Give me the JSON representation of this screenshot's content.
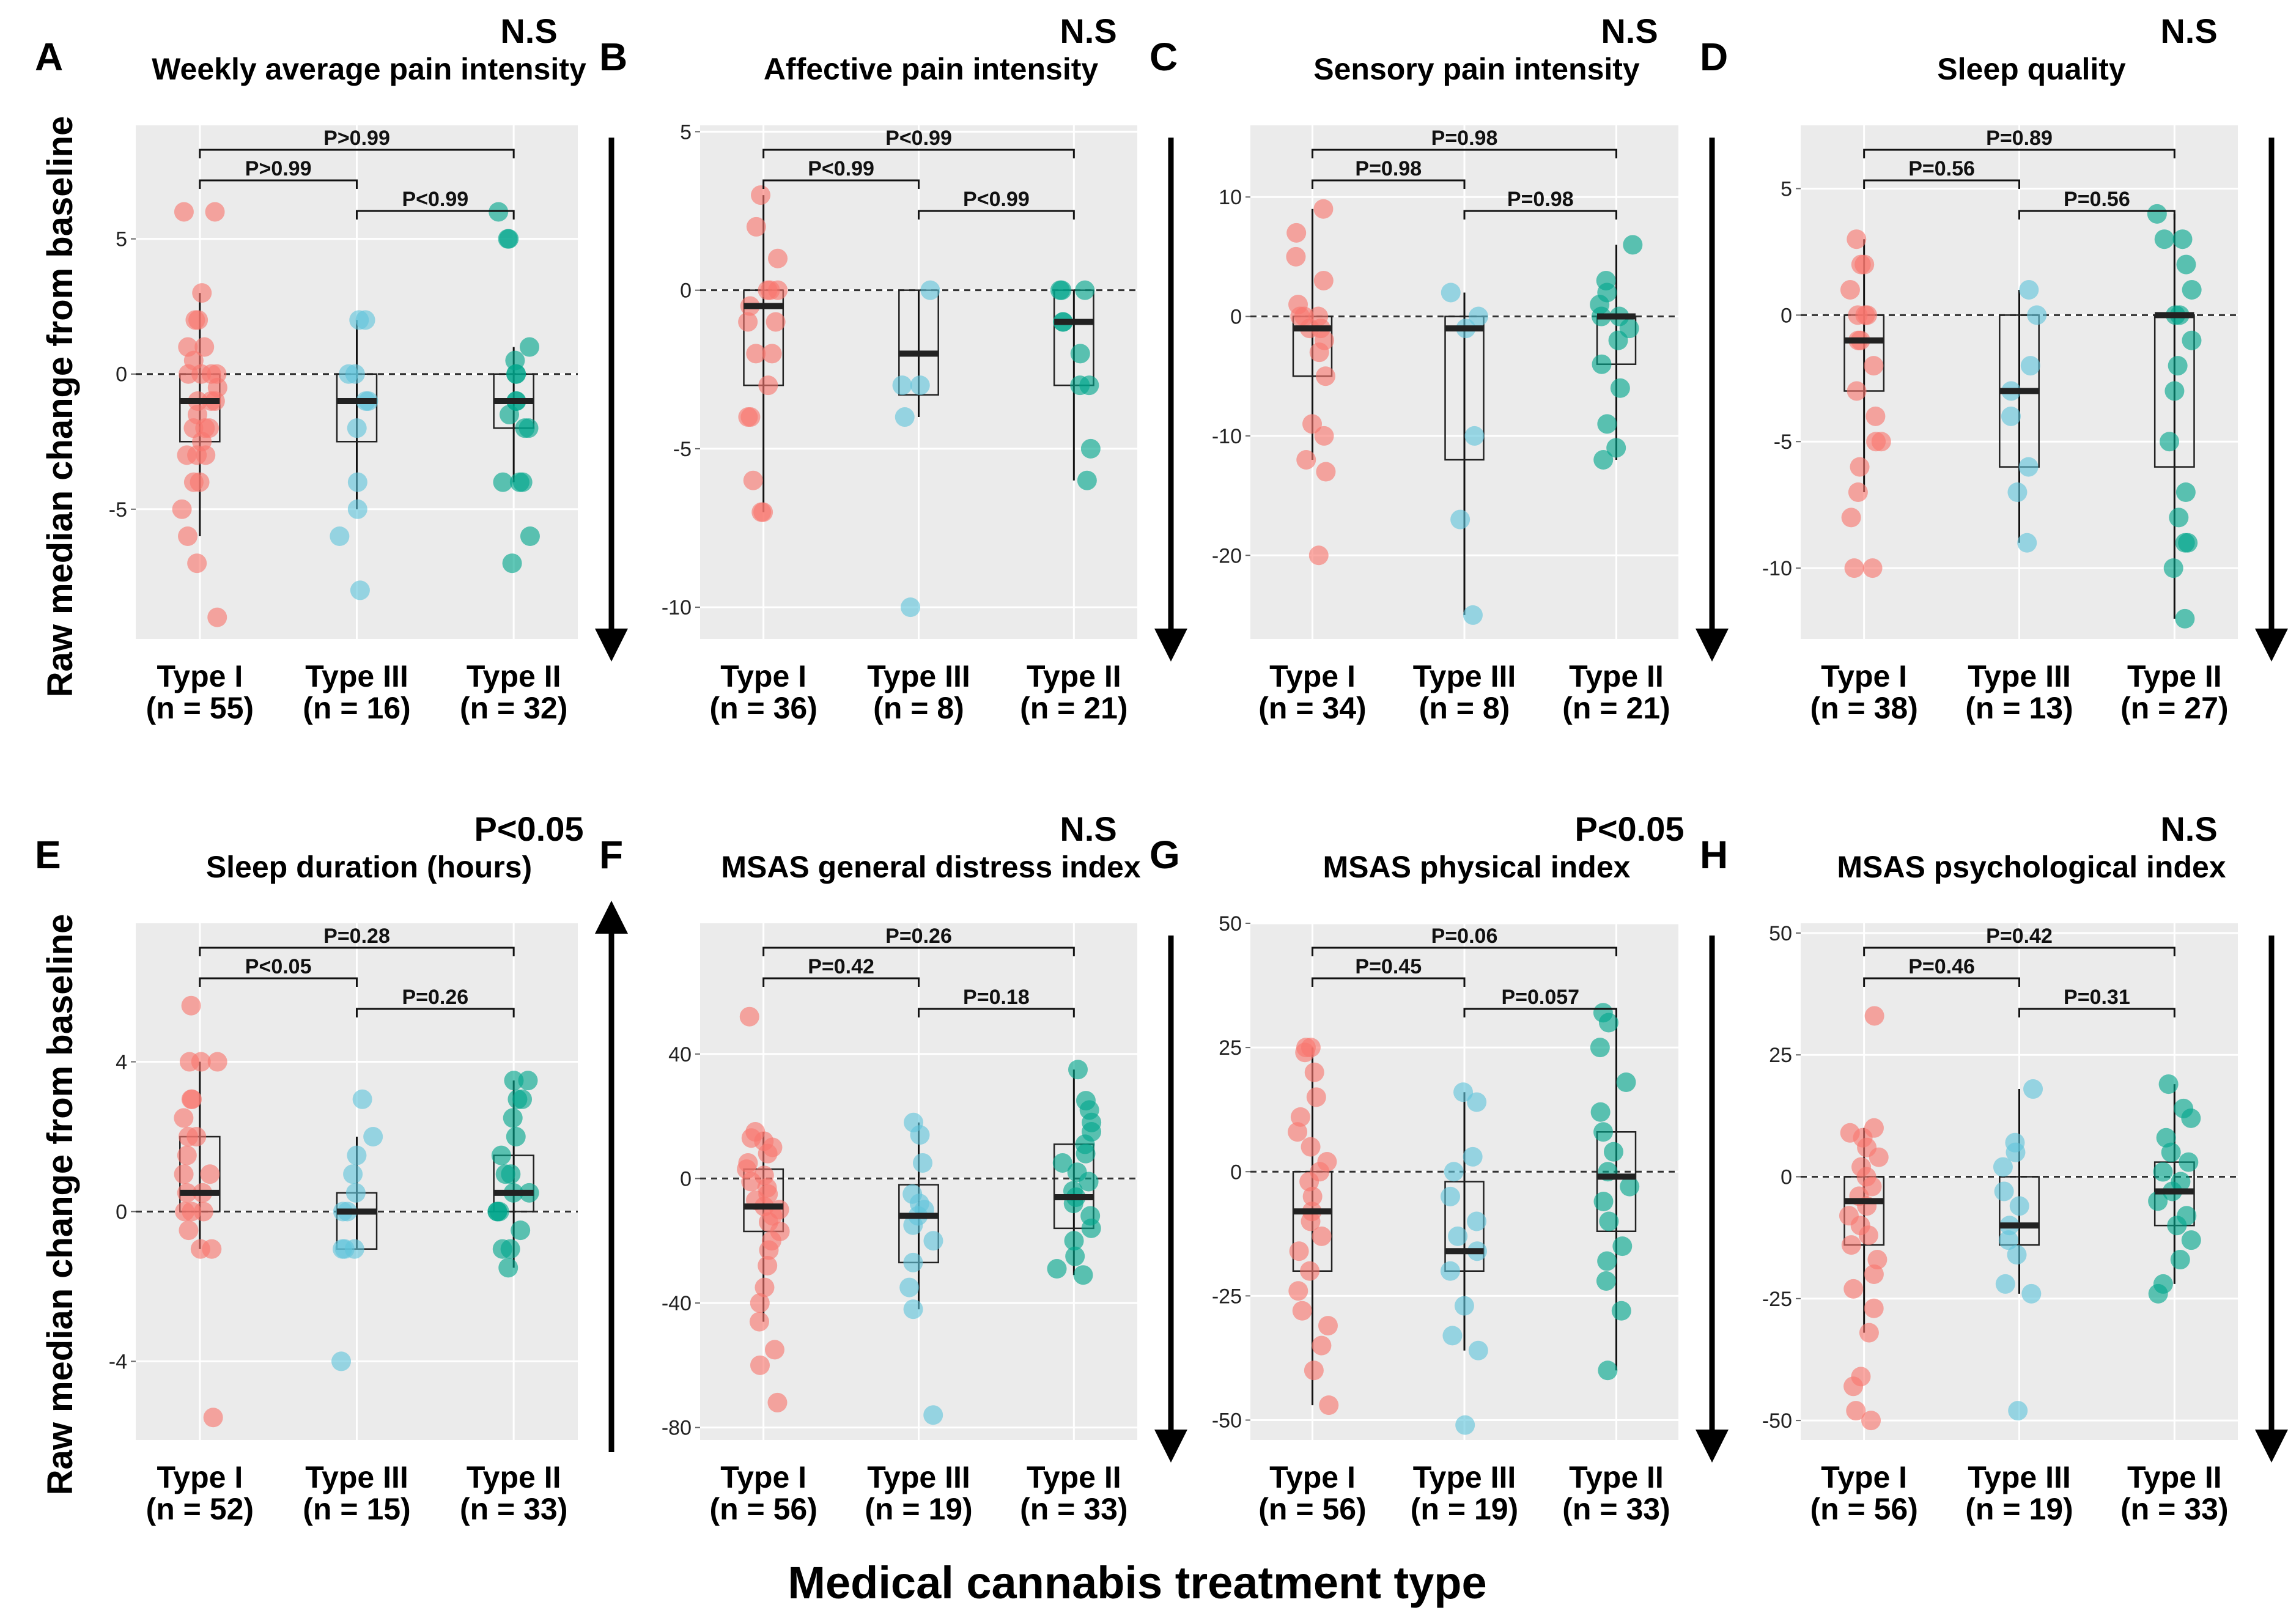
{
  "figure": {
    "y_axis_label": "Raw median change from baseline",
    "x_axis_label": "Medical cannabis treatment type",
    "colors": {
      "type1": "#f8766d",
      "type3": "#61c5dc",
      "type2": "#00a68c",
      "panel_bg": "#ebebeb",
      "grid": "#ffffff"
    }
  },
  "chart_data": [
    {
      "panel": "A",
      "title": "Weekly average pain intensity",
      "significance": "N.S",
      "arrow": "down",
      "type": "box",
      "ylim": [
        -9.8,
        9.2
      ],
      "yticks": [
        5,
        0,
        -5
      ],
      "groups": [
        {
          "name": "Type I",
          "n_label": "(n = 55)",
          "box": {
            "q1": -2.5,
            "median": -1,
            "q3": 0,
            "wlo": -6,
            "whi": 3
          },
          "points": [
            6,
            6,
            3,
            2,
            2,
            1,
            1,
            0.5,
            0,
            0,
            0,
            0,
            -0.5,
            -1,
            -1,
            -1,
            -1.5,
            -2,
            -2,
            -2,
            -2.5,
            -3,
            -3,
            -3,
            -4,
            -4,
            -5,
            -6,
            -7,
            -9
          ]
        },
        {
          "name": "Type III",
          "n_label": "(n = 16)",
          "box": {
            "q1": -2.5,
            "median": -1,
            "q3": 0,
            "wlo": -5,
            "whi": 2
          },
          "points": [
            2,
            2,
            0,
            0,
            -1,
            -1,
            -2,
            -4,
            -5,
            -6,
            -8
          ]
        },
        {
          "name": "Type II",
          "n_label": "(n = 32)",
          "box": {
            "q1": -2,
            "median": -1,
            "q3": 0,
            "wlo": -4,
            "whi": 1
          },
          "points": [
            6,
            5,
            5,
            1,
            0.5,
            0,
            0,
            -1,
            -1,
            -1.5,
            -2,
            -2,
            -4,
            -4,
            -4,
            -6,
            -7
          ]
        }
      ],
      "comparisons": [
        {
          "label": "P>0.99",
          "from": 0,
          "to": 1,
          "level": 2
        },
        {
          "label": "P<0.99",
          "from": 1,
          "to": 2,
          "level": 1
        },
        {
          "label": "P>0.99",
          "from": 0,
          "to": 2,
          "level": 3
        }
      ]
    },
    {
      "panel": "B",
      "title": "Affective pain intensity",
      "significance": "N.S",
      "arrow": "down",
      "type": "box",
      "ylim": [
        -11,
        5.2
      ],
      "yticks": [
        5,
        0,
        -5,
        -10
      ],
      "groups": [
        {
          "name": "Type I",
          "n_label": "(n = 36)",
          "box": {
            "q1": -3,
            "median": -0.5,
            "q3": 0,
            "wlo": -7,
            "whi": 3
          },
          "points": [
            3,
            2,
            1,
            0,
            0,
            0,
            -0.5,
            -1,
            -1,
            -2,
            -2,
            -3,
            -4,
            -4,
            -6,
            -7,
            -7
          ]
        },
        {
          "name": "Type III",
          "n_label": "(n = 8)",
          "box": {
            "q1": -3.3,
            "median": -2,
            "q3": 0,
            "wlo": -4,
            "whi": 0
          },
          "points": [
            0,
            -3,
            -3,
            -4,
            -10
          ]
        },
        {
          "name": "Type II",
          "n_label": "(n = 21)",
          "box": {
            "q1": -3,
            "median": -1,
            "q3": 0,
            "wlo": -6,
            "whi": 0
          },
          "points": [
            0,
            0,
            0,
            -1,
            -1,
            -2,
            -3,
            -3,
            -5,
            -6
          ]
        }
      ],
      "comparisons": [
        {
          "label": "P<0.99",
          "from": 0,
          "to": 1,
          "level": 2
        },
        {
          "label": "P<0.99",
          "from": 1,
          "to": 2,
          "level": 1
        },
        {
          "label": "P<0.99",
          "from": 0,
          "to": 2,
          "level": 3
        }
      ]
    },
    {
      "panel": "C",
      "title": "Sensory pain intensity",
      "significance": "N.S",
      "arrow": "down",
      "type": "box",
      "ylim": [
        -27,
        16
      ],
      "yticks": [
        10,
        0,
        -10,
        -20
      ],
      "groups": [
        {
          "name": "Type I",
          "n_label": "(n = 34)",
          "box": {
            "q1": -5,
            "median": -1,
            "q3": 0,
            "wlo": -12,
            "whi": 9
          },
          "points": [
            9,
            7,
            5,
            3,
            1,
            0,
            0,
            0,
            -1,
            -1,
            -2,
            -3,
            -5,
            -9,
            -10,
            -12,
            -13,
            -20
          ]
        },
        {
          "name": "Type III",
          "n_label": "(n = 8)",
          "box": {
            "q1": -12,
            "median": -1,
            "q3": 0,
            "wlo": -25,
            "whi": 2
          },
          "points": [
            2,
            0,
            -1,
            -10,
            -17,
            -25
          ]
        },
        {
          "name": "Type II",
          "n_label": "(n = 21)",
          "box": {
            "q1": -4,
            "median": 0,
            "q3": 0,
            "wlo": -12,
            "whi": 6
          },
          "points": [
            6,
            3,
            2,
            1,
            0,
            0,
            -1,
            -2,
            -4,
            -6,
            -9,
            -11,
            -12
          ]
        }
      ],
      "comparisons": [
        {
          "label": "P=0.98",
          "from": 0,
          "to": 1,
          "level": 2
        },
        {
          "label": "P=0.98",
          "from": 1,
          "to": 2,
          "level": 1
        },
        {
          "label": "P=0.98",
          "from": 0,
          "to": 2,
          "level": 3
        }
      ]
    },
    {
      "panel": "D",
      "title": "Sleep quality",
      "significance": "N.S",
      "arrow": "down",
      "type": "box",
      "ylim": [
        -12.8,
        7.5
      ],
      "yticks": [
        5,
        0,
        -5,
        -10
      ],
      "groups": [
        {
          "name": "Type I",
          "n_label": "(n = 38)",
          "box": {
            "q1": -3,
            "median": -1,
            "q3": 0,
            "wlo": -7,
            "whi": 3
          },
          "points": [
            3,
            2,
            2,
            1,
            0,
            0,
            0,
            -1,
            -1,
            -2,
            -3,
            -4,
            -5,
            -5,
            -6,
            -7,
            -8,
            -10,
            -10
          ]
        },
        {
          "name": "Type III",
          "n_label": "(n = 13)",
          "box": {
            "q1": -6,
            "median": -3,
            "q3": 0,
            "wlo": -9,
            "whi": 1
          },
          "points": [
            1,
            0,
            -2,
            -3,
            -4,
            -6,
            -7,
            -9
          ]
        },
        {
          "name": "Type II",
          "n_label": "(n = 27)",
          "box": {
            "q1": -6,
            "median": 0,
            "q3": 0,
            "wlo": -12,
            "whi": 4
          },
          "points": [
            4,
            3,
            3,
            2,
            1,
            0,
            0,
            -1,
            -2,
            -3,
            -5,
            -7,
            -8,
            -9,
            -9,
            -10,
            -12
          ]
        }
      ],
      "comparisons": [
        {
          "label": "P=0.56",
          "from": 0,
          "to": 1,
          "level": 2
        },
        {
          "label": "P=0.56",
          "from": 1,
          "to": 2,
          "level": 1
        },
        {
          "label": "P=0.89",
          "from": 0,
          "to": 2,
          "level": 3
        }
      ]
    },
    {
      "panel": "E",
      "title": "Sleep duration (hours)",
      "significance": "P<0.05",
      "arrow": "up",
      "type": "box",
      "ylim": [
        -6.1,
        7.7
      ],
      "yticks": [
        4,
        0,
        -4
      ],
      "groups": [
        {
          "name": "Type I",
          "n_label": "(n = 52)",
          "box": {
            "q1": 0,
            "median": 0.5,
            "q3": 2,
            "wlo": -1,
            "whi": 4
          },
          "points": [
            5.5,
            4,
            4,
            4,
            3,
            3,
            2.5,
            2,
            2,
            1.5,
            1,
            1,
            0.5,
            0.5,
            0,
            0,
            0,
            -0.5,
            -1,
            -1,
            -5.5
          ]
        },
        {
          "name": "Type III",
          "n_label": "(n = 15)",
          "box": {
            "q1": -1,
            "median": 0,
            "q3": 0.5,
            "wlo": -1,
            "whi": 2
          },
          "points": [
            3,
            2,
            1.5,
            1,
            0.5,
            0,
            0,
            -1,
            -1,
            -1,
            -4
          ]
        },
        {
          "name": "Type II",
          "n_label": "(n = 33)",
          "box": {
            "q1": 0,
            "median": 0.5,
            "q3": 1.5,
            "wlo": -1.5,
            "whi": 3.5
          },
          "points": [
            3.5,
            3.5,
            3,
            3,
            2.5,
            2,
            1.5,
            1,
            1,
            0.5,
            0.5,
            0,
            0,
            0,
            -0.5,
            -1,
            -1,
            -1.5
          ]
        }
      ],
      "comparisons": [
        {
          "label": "P<0.05",
          "from": 0,
          "to": 1,
          "level": 2
        },
        {
          "label": "P=0.26",
          "from": 1,
          "to": 2,
          "level": 1
        },
        {
          "label": "P=0.28",
          "from": 0,
          "to": 2,
          "level": 3
        }
      ]
    },
    {
      "panel": "F",
      "title": "MSAS general distress index",
      "significance": "N.S",
      "arrow": "down",
      "type": "box",
      "ylim": [
        -84,
        82
      ],
      "yticks": [
        40,
        0,
        -40,
        -80
      ],
      "groups": [
        {
          "name": "Type I",
          "n_label": "(n = 56)",
          "box": {
            "q1": -17,
            "median": -9,
            "q3": 3,
            "wlo": -46,
            "whi": 15
          },
          "points": [
            52,
            15,
            13,
            12,
            10,
            8,
            5,
            3,
            1,
            -1,
            -3,
            -5,
            -7,
            -9,
            -10,
            -12,
            -14,
            -17,
            -20,
            -23,
            -28,
            -35,
            -40,
            -46,
            -55,
            -60,
            -72
          ]
        },
        {
          "name": "Type III",
          "n_label": "(n = 19)",
          "box": {
            "q1": -27,
            "median": -12,
            "q3": -2,
            "wlo": -42,
            "whi": 18
          },
          "points": [
            18,
            14,
            5,
            -5,
            -8,
            -10,
            -12,
            -15,
            -20,
            -27,
            -35,
            -42,
            -76
          ]
        },
        {
          "name": "Type II",
          "n_label": "(n = 33)",
          "box": {
            "q1": -16,
            "median": -6,
            "q3": 11,
            "wlo": -31,
            "whi": 35
          },
          "points": [
            35,
            25,
            22,
            18,
            15,
            11,
            8,
            5,
            2,
            -1,
            -4,
            -6,
            -8,
            -12,
            -16,
            -20,
            -25,
            -29,
            -31
          ]
        }
      ],
      "comparisons": [
        {
          "label": "P=0.42",
          "from": 0,
          "to": 1,
          "level": 2
        },
        {
          "label": "P=0.18",
          "from": 1,
          "to": 2,
          "level": 1
        },
        {
          "label": "P=0.26",
          "from": 0,
          "to": 2,
          "level": 3
        }
      ]
    },
    {
      "panel": "G",
      "title": "MSAS physical index",
      "significance": "P<0.05",
      "arrow": "down",
      "type": "box",
      "ylim": [
        -54,
        50
      ],
      "yticks": [
        50,
        25,
        0,
        -25,
        -50
      ],
      "groups": [
        {
          "name": "Type I",
          "n_label": "(n = 56)",
          "box": {
            "q1": -20,
            "median": -8,
            "q3": 0,
            "wlo": -47,
            "whi": 25
          },
          "points": [
            25,
            25,
            24,
            20,
            15,
            11,
            8,
            5,
            2,
            0,
            -2,
            -5,
            -8,
            -10,
            -13,
            -16,
            -20,
            -24,
            -28,
            -31,
            -35,
            -40,
            -47
          ]
        },
        {
          "name": "Type III",
          "n_label": "(n = 19)",
          "box": {
            "q1": -20,
            "median": -16,
            "q3": -2,
            "wlo": -36,
            "whi": 16
          },
          "points": [
            16,
            14,
            3,
            0,
            -5,
            -10,
            -13,
            -16,
            -20,
            -27,
            -33,
            -36,
            -51
          ]
        },
        {
          "name": "Type II",
          "n_label": "(n = 33)",
          "box": {
            "q1": -12,
            "median": -1,
            "q3": 8,
            "wlo": -40,
            "whi": 32
          },
          "points": [
            32,
            30,
            25,
            18,
            12,
            8,
            4,
            0,
            -3,
            -6,
            -10,
            -15,
            -18,
            -22,
            -28,
            -40
          ]
        }
      ],
      "comparisons": [
        {
          "label": "P=0.45",
          "from": 0,
          "to": 1,
          "level": 2
        },
        {
          "label": "P=0.057",
          "from": 1,
          "to": 2,
          "level": 1
        },
        {
          "label": "P=0.06",
          "from": 0,
          "to": 2,
          "level": 3
        }
      ]
    },
    {
      "panel": "H",
      "title": "MSAS psychological index",
      "significance": "N.S",
      "arrow": "down",
      "type": "box",
      "ylim": [
        -54,
        52
      ],
      "yticks": [
        50,
        25,
        0,
        -25,
        -50
      ],
      "groups": [
        {
          "name": "Type I",
          "n_label": "(n = 56)",
          "box": {
            "q1": -14,
            "median": -5,
            "q3": 0,
            "wlo": -32,
            "whi": 10
          },
          "points": [
            33,
            10,
            9,
            8,
            6,
            4,
            2,
            0,
            -2,
            -4,
            -6,
            -8,
            -10,
            -12,
            -14,
            -17,
            -20,
            -23,
            -27,
            -32,
            -41,
            -43,
            -48,
            -50
          ]
        },
        {
          "name": "Type III",
          "n_label": "(n = 19)",
          "box": {
            "q1": -14,
            "median": -10,
            "q3": 0,
            "wlo": -24,
            "whi": 18
          },
          "points": [
            18,
            7,
            5,
            2,
            -3,
            -6,
            -10,
            -13,
            -16,
            -22,
            -24,
            -48
          ]
        },
        {
          "name": "Type II",
          "n_label": "(n = 33)",
          "box": {
            "q1": -10,
            "median": -3,
            "q3": 3,
            "wlo": -22,
            "whi": 19
          },
          "points": [
            19,
            14,
            12,
            8,
            5,
            3,
            1,
            -1,
            -3,
            -5,
            -8,
            -10,
            -13,
            -17,
            -22,
            -24
          ]
        }
      ],
      "comparisons": [
        {
          "label": "P=0.46",
          "from": 0,
          "to": 1,
          "level": 2
        },
        {
          "label": "P=0.31",
          "from": 1,
          "to": 2,
          "level": 1
        },
        {
          "label": "P=0.42",
          "from": 0,
          "to": 2,
          "level": 3
        }
      ]
    }
  ]
}
